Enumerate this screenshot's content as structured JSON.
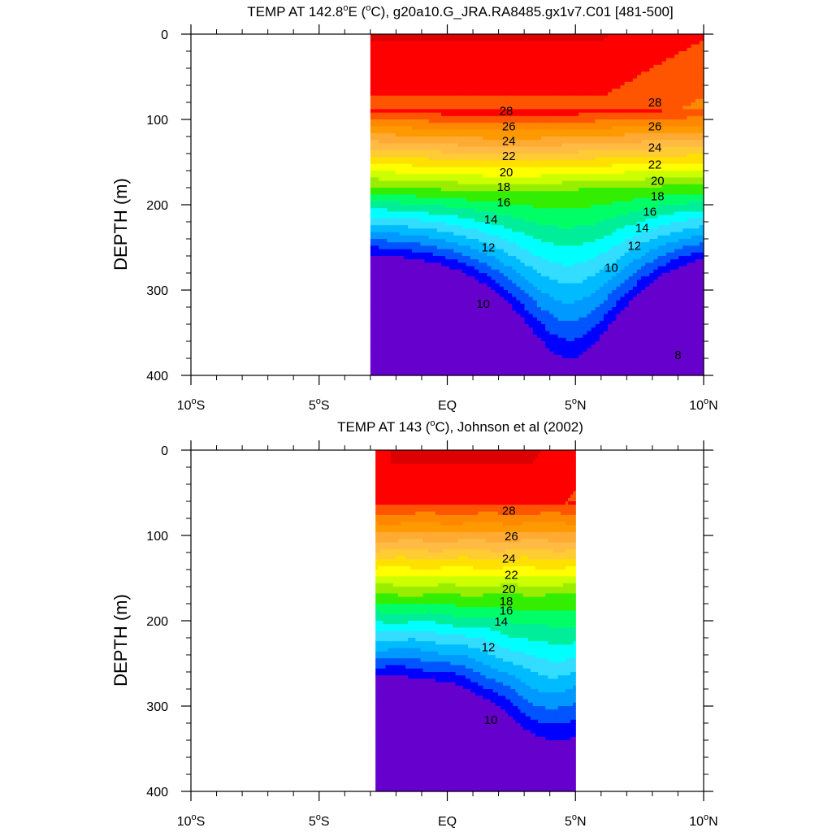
{
  "colors": {
    "t8": "#6600cc",
    "t9": "#0000ff",
    "t10": "#0055ff",
    "t11": "#0099ff",
    "t12": "#00bbff",
    "t13": "#33ddff",
    "t14": "#00ffff",
    "t15": "#00ee99",
    "t16": "#00ff66",
    "t17": "#33ee00",
    "t18": "#99ee00",
    "t19": "#ccff00",
    "t20": "#ffff00",
    "t21": "#ffe000",
    "t22": "#ffcc33",
    "t23": "#ffbb44",
    "t24": "#ffaa33",
    "t25": "#ff9900",
    "t26": "#ff8800",
    "t27": "#ff5500",
    "t28": "#ff0000",
    "t29": "#dd0000"
  },
  "chart_data": [
    {
      "type": "contour",
      "title_parts": [
        "TEMP AT 142.8",
        "o",
        "E (",
        "o",
        "C), g20a10.G_JRA.RA8485.gx1v7.C01 [481-500]"
      ],
      "ylabel": "DEPTH (m)",
      "xlim": [
        -10,
        10
      ],
      "ylim": [
        400,
        0
      ],
      "x_ticks": [
        {
          "value": -10,
          "pre": "10",
          "sup": "o",
          "post": "S"
        },
        {
          "value": -5,
          "pre": "5",
          "sup": "o",
          "post": "S"
        },
        {
          "value": 0,
          "pre": "EQ",
          "sup": "",
          "post": ""
        },
        {
          "value": 5,
          "pre": "5",
          "sup": "o",
          "post": "N"
        },
        {
          "value": 10,
          "pre": "10",
          "sup": "o",
          "post": "N"
        }
      ],
      "y_ticks": [
        {
          "value": 0,
          "label": "0"
        },
        {
          "value": 100,
          "label": "100"
        },
        {
          "value": 200,
          "label": "200"
        },
        {
          "value": 300,
          "label": "300"
        },
        {
          "value": 400,
          "label": "400"
        }
      ],
      "data_x_range": [
        -3,
        10
      ],
      "contour_labels": [
        {
          "text": "28",
          "x": 2.3,
          "y": 90
        },
        {
          "text": "28",
          "x": 8.1,
          "y": 80
        },
        {
          "text": "26",
          "x": 2.4,
          "y": 108
        },
        {
          "text": "26",
          "x": 8.1,
          "y": 108
        },
        {
          "text": "24",
          "x": 2.4,
          "y": 125
        },
        {
          "text": "24",
          "x": 8.1,
          "y": 133
        },
        {
          "text": "22",
          "x": 2.4,
          "y": 143
        },
        {
          "text": "22",
          "x": 8.1,
          "y": 153
        },
        {
          "text": "20",
          "x": 2.3,
          "y": 162
        },
        {
          "text": "20",
          "x": 8.2,
          "y": 172
        },
        {
          "text": "18",
          "x": 2.2,
          "y": 179
        },
        {
          "text": "18",
          "x": 8.2,
          "y": 190
        },
        {
          "text": "16",
          "x": 2.2,
          "y": 197
        },
        {
          "text": "16",
          "x": 7.9,
          "y": 208
        },
        {
          "text": "14",
          "x": 1.7,
          "y": 217
        },
        {
          "text": "14",
          "x": 7.6,
          "y": 227
        },
        {
          "text": "12",
          "x": 1.6,
          "y": 250
        },
        {
          "text": "12",
          "x": 7.3,
          "y": 248
        },
        {
          "text": "10",
          "x": 1.4,
          "y": 316
        },
        {
          "text": "10",
          "x": 6.4,
          "y": 274
        },
        {
          "text": "8",
          "x": 9.0,
          "y": 376
        }
      ]
    },
    {
      "type": "contour",
      "title_parts": [
        "TEMP AT 143 (",
        "o",
        "C), Johnson et al (2002)"
      ],
      "ylabel": "DEPTH (m)",
      "xlim": [
        -10,
        10
      ],
      "ylim": [
        400,
        0
      ],
      "x_ticks": [
        {
          "value": -10,
          "pre": "10",
          "sup": "o",
          "post": "S"
        },
        {
          "value": -5,
          "pre": "5",
          "sup": "o",
          "post": "S"
        },
        {
          "value": 0,
          "pre": "EQ",
          "sup": "",
          "post": ""
        },
        {
          "value": 5,
          "pre": "5",
          "sup": "o",
          "post": "N"
        },
        {
          "value": 10,
          "pre": "10",
          "sup": "o",
          "post": "N"
        }
      ],
      "y_ticks": [
        {
          "value": 0,
          "label": "0"
        },
        {
          "value": 100,
          "label": "100"
        },
        {
          "value": 200,
          "label": "200"
        },
        {
          "value": 300,
          "label": "300"
        },
        {
          "value": 400,
          "label": "400"
        }
      ],
      "data_x_range": [
        -2.8,
        5
      ],
      "contour_labels": [
        {
          "text": "28",
          "x": 2.4,
          "y": 71
        },
        {
          "text": "26",
          "x": 2.5,
          "y": 101
        },
        {
          "text": "24",
          "x": 2.4,
          "y": 127
        },
        {
          "text": "22",
          "x": 2.5,
          "y": 146
        },
        {
          "text": "20",
          "x": 2.4,
          "y": 163
        },
        {
          "text": "18",
          "x": 2.3,
          "y": 177
        },
        {
          "text": "16",
          "x": 2.3,
          "y": 188
        },
        {
          "text": "14",
          "x": 2.1,
          "y": 201
        },
        {
          "text": "12",
          "x": 1.6,
          "y": 231
        },
        {
          "text": "10",
          "x": 1.7,
          "y": 316
        }
      ]
    }
  ]
}
